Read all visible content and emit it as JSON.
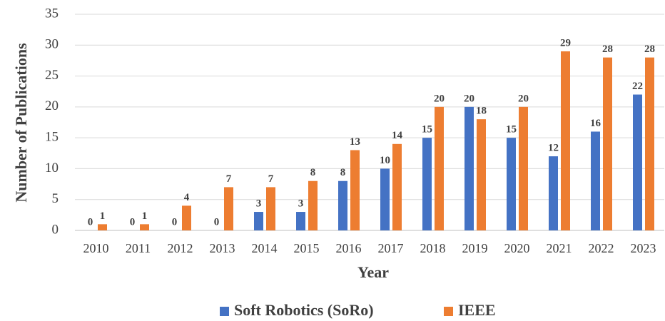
{
  "chart_data": {
    "type": "bar",
    "x_label": "Year",
    "y_label": "Number of Publications",
    "categories": [
      "2010",
      "2011",
      "2012",
      "2013",
      "2014",
      "2015",
      "2016",
      "2017",
      "2018",
      "2019",
      "2020",
      "2021",
      "2022",
      "2023"
    ],
    "series": [
      {
        "name": "Soft Robotics (SoRo)",
        "color": "#4472c4",
        "values": [
          0,
          0,
          0,
          0,
          3,
          3,
          8,
          10,
          15,
          20,
          15,
          12,
          16,
          22
        ]
      },
      {
        "name": "IEEE",
        "color": "#ed7d31",
        "values": [
          1,
          1,
          4,
          7,
          7,
          8,
          13,
          14,
          20,
          18,
          20,
          29,
          28,
          28
        ]
      }
    ],
    "ylim": [
      0,
      35
    ],
    "yticks": [
      0,
      5,
      10,
      15,
      20,
      25,
      30,
      35
    ],
    "grid": true,
    "legend": "bottom"
  }
}
